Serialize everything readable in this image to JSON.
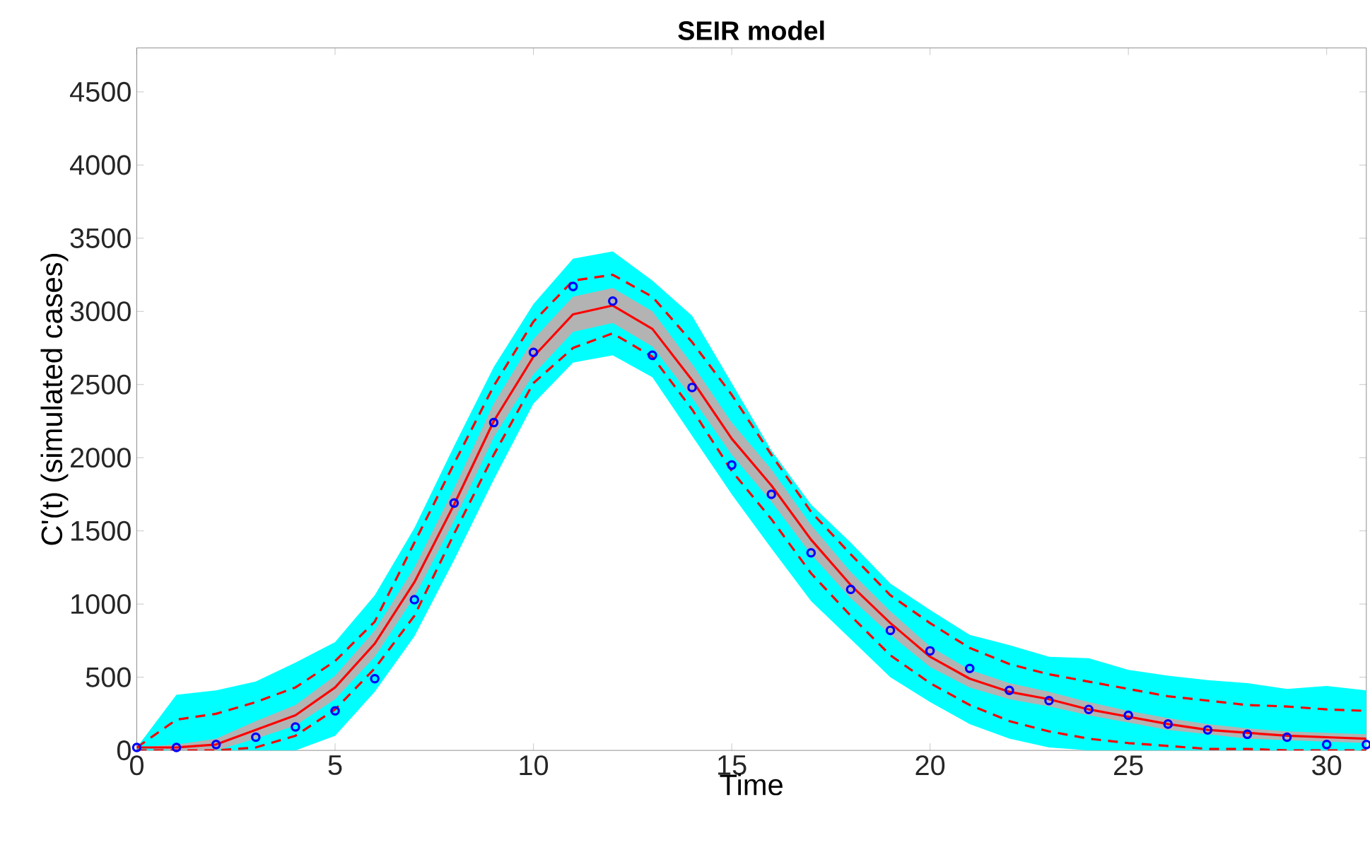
{
  "chart_data": {
    "type": "line",
    "title": "SEIR model",
    "xlabel": "Time",
    "ylabel": "C'(t) (simulated cases)",
    "x": [
      0,
      1,
      2,
      3,
      4,
      5,
      6,
      7,
      8,
      9,
      10,
      11,
      12,
      13,
      14,
      15,
      16,
      17,
      18,
      19,
      20,
      21,
      22,
      23,
      24,
      25,
      26,
      27,
      28,
      29,
      30,
      31
    ],
    "xlim": [
      0,
      31
    ],
    "ylim": [
      0,
      4800
    ],
    "xticks": [
      0,
      5,
      10,
      15,
      20,
      25,
      30
    ],
    "yticks": [
      0,
      500,
      1000,
      1500,
      2000,
      2500,
      3000,
      3500,
      4000,
      4500
    ],
    "grid": false,
    "series": [
      {
        "color": "#00ffff",
        "values": [
          null,
          null,
          null,
          null,
          null,
          null,
          null,
          null,
          null,
          null,
          null,
          null,
          null,
          null,
          null,
          null,
          null,
          null,
          null,
          null,
          null,
          null,
          null,
          null,
          null,
          null,
          null,
          null,
          null,
          null,
          null,
          null
        ],
        "upper": [
          20,
          380,
          410,
          470,
          600,
          740,
          1060,
          1520,
          2080,
          2620,
          3050,
          3360,
          3410,
          3210,
          2970,
          2510,
          2050,
          1680,
          1420,
          1140,
          960,
          790,
          720,
          640,
          630,
          550,
          510,
          480,
          460,
          420,
          440,
          410
        ],
        "lower": [
          0,
          0,
          0,
          0,
          0,
          100,
          400,
          780,
          1300,
          1850,
          2370,
          2650,
          2700,
          2550,
          2150,
          1750,
          1380,
          1020,
          760,
          500,
          330,
          180,
          80,
          20,
          0,
          0,
          0,
          0,
          0,
          0,
          0,
          0
        ]
      },
      {
        "color": "#b3b3b3",
        "values": [
          null,
          null,
          null,
          null,
          null,
          null,
          null,
          null,
          null,
          null,
          null,
          null,
          null,
          null,
          null,
          null,
          null,
          null,
          null,
          null,
          null,
          null,
          null,
          null,
          null,
          null,
          null,
          null,
          null,
          null,
          null,
          null
        ],
        "upper": [
          20,
          40,
          80,
          200,
          310,
          510,
          820,
          1250,
          1790,
          2370,
          2810,
          3100,
          3160,
          3000,
          2640,
          2240,
          1920,
          1540,
          1220,
          950,
          710,
          550,
          460,
          400,
          330,
          270,
          220,
          180,
          150,
          130,
          120,
          110
        ],
        "lower": [
          20,
          0,
          0,
          80,
          170,
          350,
          640,
          1050,
          1570,
          2140,
          2570,
          2860,
          2920,
          2760,
          2410,
          2020,
          1700,
          1340,
          1040,
          790,
          570,
          430,
          350,
          300,
          240,
          190,
          140,
          110,
          80,
          70,
          60,
          50
        ]
      },
      {
        "color": "#ff0000",
        "line_style": "solid",
        "values": [
          20,
          20,
          40,
          140,
          240,
          430,
          730,
          1150,
          1680,
          2250,
          2690,
          2980,
          3040,
          2880,
          2530,
          2130,
          1810,
          1440,
          1130,
          870,
          640,
          490,
          400,
          350,
          280,
          230,
          180,
          140,
          120,
          100,
          90,
          80
        ]
      },
      {
        "color": "#ff0000",
        "line_style": "dashed",
        "values": [
          20,
          210,
          250,
          330,
          430,
          610,
          880,
          1420,
          1960,
          2490,
          2930,
          3210,
          3250,
          3100,
          2790,
          2430,
          2020,
          1630,
          1340,
          1060,
          870,
          700,
          590,
          520,
          470,
          420,
          370,
          340,
          310,
          300,
          280,
          270
        ]
      },
      {
        "color": "#ff0000",
        "line_style": "dashed",
        "values": [
          0,
          0,
          0,
          20,
          100,
          280,
          560,
          920,
          1480,
          2020,
          2510,
          2750,
          2850,
          2690,
          2330,
          1910,
          1580,
          1210,
          920,
          650,
          460,
          310,
          200,
          130,
          80,
          50,
          30,
          10,
          10,
          0,
          0,
          0
        ]
      },
      {
        "type": "scatter",
        "color": "#0000ff",
        "marker": "circle",
        "values": [
          20,
          20,
          40,
          90,
          160,
          270,
          490,
          1030,
          1690,
          2240,
          2720,
          3170,
          3070,
          2700,
          2480,
          1950,
          1750,
          1350,
          1100,
          820,
          680,
          560,
          410,
          340,
          280,
          240,
          180,
          140,
          110,
          90,
          40,
          40
        ]
      }
    ]
  }
}
